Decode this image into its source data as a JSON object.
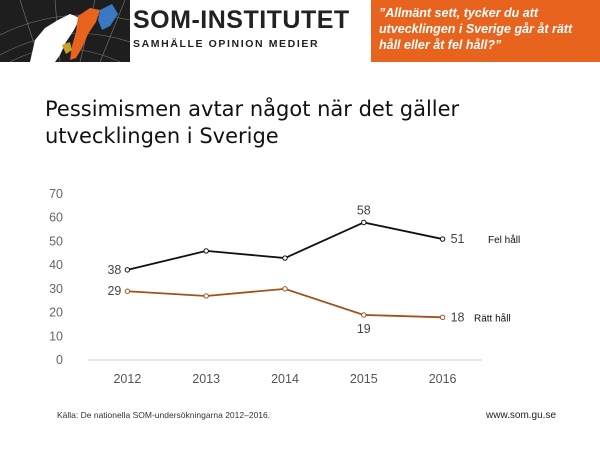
{
  "header": {
    "logo_title": "SOM-INSTITUTET",
    "logo_subtitle": "SAMHÄLLE OPINION MEDIER",
    "question": "”Allmänt sett, tycker du att utvecklingen i Sverige går åt rätt håll eller åt fel håll?”",
    "question_bg": "#e8641e"
  },
  "title": "Pessimismen avtar något när det gäller utvecklingen i Sverige",
  "footer": {
    "source": "Källa: De nationella SOM-undersökningarna 2012–2016.",
    "url": "www.som.gu.se"
  },
  "chart_data": {
    "type": "line",
    "title": "Pessimismen avtar något när det gäller utvecklingen i Sverige",
    "xlabel": "",
    "ylabel": "",
    "categories": [
      "2012",
      "2013",
      "2014",
      "2015",
      "2016"
    ],
    "ylim": [
      0,
      70
    ],
    "yticks": [
      0,
      10,
      20,
      30,
      40,
      50,
      60,
      70
    ],
    "grid": false,
    "series": [
      {
        "name": "Fel håll",
        "values": [
          38,
          46,
          43,
          58,
          51
        ],
        "color": "#111111",
        "labels": {
          "0": "38",
          "3": "58",
          "4": "51"
        },
        "label_pos": {
          "0": "left",
          "3": "above",
          "4": "right"
        }
      },
      {
        "name": "Rätt håll",
        "values": [
          29,
          27,
          30,
          19,
          18
        ],
        "color": "#a0521d",
        "labels": {
          "0": "29",
          "3": "19",
          "4": "18"
        },
        "label_pos": {
          "0": "left",
          "3": "below",
          "4": "right"
        }
      }
    ]
  }
}
